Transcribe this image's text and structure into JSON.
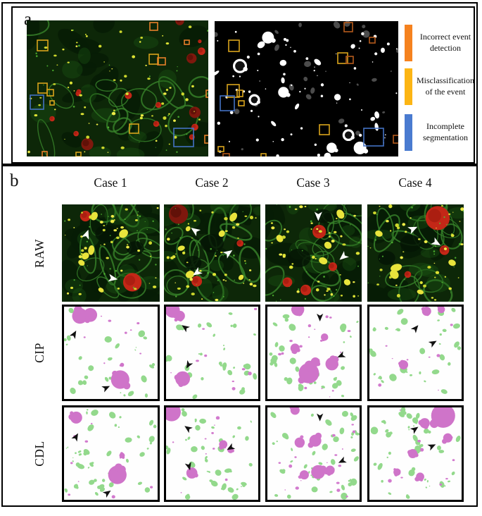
{
  "panel_a": {
    "label": "a",
    "legend": [
      {
        "color": "#F5821F",
        "label": "Incorrect event detection"
      },
      {
        "color": "#FCB514",
        "label": "Misclassification of the event"
      },
      {
        "color": "#4A7BD0",
        "label": "Incomplete segmentation"
      }
    ],
    "annotation_colors": {
      "gold": "#D9A41B",
      "orange": "#E8802A",
      "darkorange": "#B55A1C",
      "blue": "#4472C4"
    },
    "fluorescence": {
      "seed": 7,
      "ydots": 70,
      "boxes": [
        [
          15,
          28,
          15,
          15,
          "gold"
        ],
        [
          175,
          3,
          11,
          11,
          "orange"
        ],
        [
          224,
          28,
          7,
          6,
          "orange"
        ],
        [
          174,
          48,
          13,
          14,
          "gold"
        ],
        [
          186,
          53,
          11,
          10,
          "orange"
        ],
        [
          16,
          89,
          13,
          14,
          "gold"
        ],
        [
          29,
          98,
          9,
          9,
          "gold"
        ],
        [
          5,
          106,
          19,
          20,
          "blue"
        ],
        [
          33,
          114,
          6,
          6,
          "gold"
        ],
        [
          255,
          99,
          7,
          10,
          "orange"
        ],
        [
          146,
          147,
          13,
          13,
          "gold"
        ],
        [
          209,
          153,
          28,
          26,
          "blue"
        ],
        [
          253,
          163,
          9,
          11,
          "orange"
        ],
        [
          22,
          186,
          7,
          8,
          "orange"
        ],
        [
          70,
          187,
          7,
          6,
          "gold"
        ]
      ]
    },
    "mask": {
      "seed": 91,
      "boxes": [
        [
          20,
          27,
          15,
          16,
          "gold"
        ],
        [
          184,
          2,
          12,
          13,
          "darkorange"
        ],
        [
          220,
          23,
          8,
          8,
          "darkorange"
        ],
        [
          175,
          45,
          14,
          15,
          "gold"
        ],
        [
          187,
          50,
          10,
          10,
          "darkorange"
        ],
        [
          18,
          90,
          17,
          18,
          "gold"
        ],
        [
          32,
          98,
          8,
          9,
          "gold"
        ],
        [
          8,
          106,
          20,
          21,
          "blue"
        ],
        [
          34,
          113,
          8,
          7,
          "gold"
        ],
        [
          149,
          147,
          14,
          14,
          "gold"
        ],
        [
          212,
          152,
          28,
          25,
          "blue"
        ],
        [
          254,
          162,
          10,
          11,
          "darkorange"
        ],
        [
          5,
          178,
          8,
          7,
          "gold"
        ],
        [
          12,
          188,
          9,
          8,
          "darkorange"
        ],
        [
          66,
          188,
          7,
          6,
          "gold"
        ]
      ]
    }
  },
  "panel_b": {
    "label": "b",
    "cases": [
      "Case 1",
      "Case 2",
      "Case 3",
      "Case 4"
    ],
    "rows": [
      "RAW",
      "CIP",
      "CDL"
    ],
    "raw_panels": [
      {
        "seed": 21,
        "red": [
          [
            0.24,
            0.12,
            0.055
          ],
          [
            0.72,
            0.8,
            0.095
          ]
        ],
        "dark": [
          [
            0.45,
            0.3,
            0.11
          ],
          [
            0.75,
            0.45,
            0.09
          ]
        ],
        "yellow": [
          [
            0.33,
            0.12,
            0.045
          ],
          [
            0.3,
            0.47,
            0.05
          ],
          [
            0.24,
            0.53,
            0.04
          ],
          [
            0.63,
            0.3,
            0.05
          ],
          [
            0.2,
            0.6,
            0.035
          ],
          [
            0.4,
            0.88,
            0.03
          ]
        ],
        "arrows": [
          [
            0.27,
            0.26,
            -70
          ],
          [
            0.57,
            0.77,
            10
          ]
        ]
      },
      {
        "seed": 22,
        "red": [
          [
            0.15,
            0.1,
            0.1,
            "dark"
          ],
          [
            0.79,
            0.4,
            0.035
          ],
          [
            0.34,
            0.79,
            0.055
          ]
        ],
        "dark": [
          [
            0.5,
            0.4,
            0.12
          ],
          [
            0.3,
            0.6,
            0.09
          ]
        ],
        "yellow": [
          [
            0.27,
            0.72,
            0.045
          ],
          [
            0.25,
            0.25,
            0.028
          ],
          [
            0.72,
            0.13,
            0.05
          ],
          [
            0.18,
            0.45,
            0.038
          ],
          [
            0.6,
            0.3,
            0.035
          ],
          [
            0.8,
            0.75,
            0.03
          ]
        ],
        "arrows": [
          [
            0.28,
            0.24,
            215
          ],
          [
            0.71,
            0.47,
            -35
          ],
          [
            0.3,
            0.73,
            145
          ]
        ]
      },
      {
        "seed": 23,
        "red": [
          [
            0.56,
            0.28,
            0.07
          ],
          [
            0.7,
            0.64,
            0.045
          ],
          [
            0.42,
            0.88,
            0.055
          ],
          [
            0.23,
            0.8,
            0.05
          ]
        ],
        "dark": [
          [
            0.35,
            0.55,
            0.12
          ],
          [
            0.6,
            0.12,
            0.09
          ]
        ],
        "yellow": [
          [
            0.78,
            0.1,
            0.05
          ],
          [
            0.65,
            0.42,
            0.04
          ],
          [
            0.6,
            0.58,
            0.045
          ],
          [
            0.15,
            0.35,
            0.04
          ],
          [
            0.85,
            0.8,
            0.035
          ]
        ],
        "arrows": [
          [
            0.55,
            0.17,
            90
          ],
          [
            0.77,
            0.57,
            140
          ]
        ]
      },
      {
        "seed": 24,
        "red": [
          [
            0.73,
            0.14,
            0.125
          ],
          [
            0.8,
            0.47,
            0.05
          ],
          [
            0.42,
            0.72,
            0.035
          ]
        ],
        "dark": [
          [
            0.45,
            0.4,
            0.11
          ],
          [
            0.2,
            0.55,
            0.09
          ]
        ],
        "yellow": [
          [
            0.3,
            0.65,
            0.06
          ],
          [
            0.28,
            0.72,
            0.05
          ],
          [
            0.88,
            0.6,
            0.04
          ],
          [
            0.12,
            0.3,
            0.04
          ],
          [
            0.55,
            0.9,
            0.035
          ]
        ],
        "arrows": [
          [
            0.52,
            0.23,
            -25
          ],
          [
            0.76,
            0.42,
            30
          ]
        ]
      }
    ],
    "cip_panels": [
      {
        "seed": 31,
        "green": 26,
        "pinkDots": 8,
        "magenta": [
          [
            0.17,
            0.1,
            0.085
          ],
          [
            0.28,
            0.09,
            0.075
          ],
          [
            0.6,
            0.79,
            0.1
          ],
          [
            0.62,
            0.63,
            0.022
          ]
        ],
        "arrows": [
          [
            0.13,
            0.26,
            -60
          ],
          [
            0.49,
            0.86,
            -25
          ]
        ]
      },
      {
        "seed": 32,
        "green": 26,
        "pinkDots": 9,
        "magenta": [
          [
            0.07,
            0.04,
            0.08
          ],
          [
            0.15,
            0.1,
            0.055
          ],
          [
            0.18,
            0.78,
            0.08
          ]
        ],
        "arrows": [
          [
            0.17,
            0.2,
            215
          ],
          [
            0.22,
            0.67,
            120
          ]
        ]
      },
      {
        "seed": 33,
        "green": 26,
        "pinkDots": 18,
        "magenta": [
          [
            0.33,
            0.03,
            0.07
          ],
          [
            0.45,
            0.72,
            0.11
          ],
          [
            0.52,
            0.6,
            0.05
          ],
          [
            0.7,
            0.62,
            0.07
          ],
          [
            0.3,
            0.45,
            0.05
          ],
          [
            0.62,
            0.33,
            0.04
          ]
        ],
        "arrows": [
          [
            0.57,
            0.16,
            90
          ],
          [
            0.76,
            0.55,
            155
          ]
        ]
      },
      {
        "seed": 34,
        "green": 28,
        "pinkDots": 8,
        "magenta": [
          [
            0.37,
            0.63,
            0.05
          ],
          [
            0.62,
            0.05,
            0.05
          ],
          [
            0.78,
            0.03,
            0.04
          ]
        ],
        "arrows": [
          [
            0.53,
            0.2,
            -50
          ],
          [
            0.73,
            0.37,
            -30
          ]
        ]
      }
    ],
    "cdl_panels": [
      {
        "seed": 41,
        "green": 36,
        "pinkDots": 8,
        "magenta": [
          [
            0.13,
            0.11,
            0.065
          ],
          [
            0.57,
            0.73,
            0.1
          ],
          [
            0.62,
            0.52,
            0.03
          ]
        ],
        "arrows": [
          [
            0.15,
            0.28,
            -60
          ],
          [
            0.5,
            0.9,
            -35
          ]
        ]
      },
      {
        "seed": 42,
        "green": 36,
        "pinkDots": 10,
        "magenta": [
          [
            0.06,
            0.05,
            0.1
          ],
          [
            0.62,
            0.4,
            0.045
          ],
          [
            0.7,
            0.46,
            0.035
          ],
          [
            0.28,
            0.71,
            0.06
          ]
        ],
        "arrows": [
          [
            0.2,
            0.2,
            215
          ],
          [
            0.66,
            0.46,
            150
          ],
          [
            0.26,
            0.68,
            75
          ]
        ]
      },
      {
        "seed": 43,
        "green": 36,
        "pinkDots": 20,
        "magenta": [
          [
            0.35,
            0.38,
            0.055
          ],
          [
            0.52,
            0.36,
            0.065
          ],
          [
            0.55,
            0.7,
            0.075
          ],
          [
            0.68,
            0.68,
            0.05
          ],
          [
            0.4,
            0.73,
            0.05
          ],
          [
            0.3,
            0.03,
            0.05
          ]
        ],
        "arrows": [
          [
            0.57,
            0.15,
            90
          ],
          [
            0.77,
            0.6,
            155
          ]
        ]
      },
      {
        "seed": 44,
        "green": 38,
        "pinkDots": 9,
        "magenta": [
          [
            0.8,
            0.09,
            0.13
          ],
          [
            0.6,
            0.17,
            0.055
          ],
          [
            0.85,
            0.33,
            0.05
          ],
          [
            0.47,
            0.5,
            0.05
          ],
          [
            0.55,
            0.75,
            0.045
          ],
          [
            0.3,
            0.7,
            0.04
          ]
        ],
        "arrows": [
          [
            0.53,
            0.21,
            -35
          ],
          [
            0.72,
            0.4,
            -25
          ]
        ]
      }
    ]
  },
  "palette": {
    "seg_green": "#93D98C",
    "seg_magenta": "#CF74C9",
    "raw_background": "#0D2708",
    "raw_membrane": "#38842A",
    "raw_yellow": "#E9E43C",
    "raw_red": "#C32717",
    "mask_background": "#000000",
    "mask_blob": "#FFFFFF",
    "mask_gray": "#505050",
    "arrow_raw": "#FFFFFF",
    "arrow_seg": "#111111"
  }
}
